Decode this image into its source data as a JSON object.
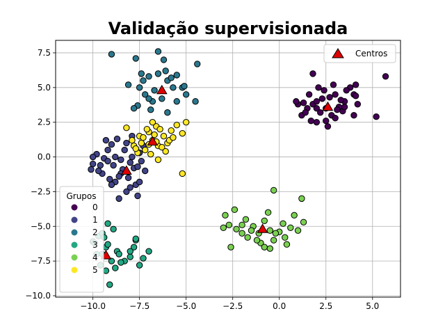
{
  "chart_data": {
    "type": "scatter",
    "title": "Validação supervisionada",
    "xlabel": "",
    "ylabel": "",
    "xlim": [
      -12.0,
      6.5
    ],
    "ylim": [
      -10.1,
      8.4
    ],
    "xticks": [
      -10.0,
      -7.5,
      -5.0,
      -2.5,
      0.0,
      2.5,
      5.0
    ],
    "yticks": [
      -10.0,
      -7.5,
      -5.0,
      -2.5,
      0.0,
      2.5,
      5.0,
      7.5
    ],
    "xtick_labels": [
      "−10.0",
      "−7.5",
      "−5.0",
      "−2.5",
      "0.0",
      "2.5",
      "5.0"
    ],
    "ytick_labels": [
      "−10.0",
      "−7.5",
      "−5.0",
      "−2.5",
      "0.0",
      "2.5",
      "5.0",
      "7.5"
    ],
    "grid": true,
    "legend_groups": {
      "title": "Grupos",
      "placement": "lower-left",
      "entries": [
        {
          "label": "0",
          "color": "#440154"
        },
        {
          "label": "1",
          "color": "#414487"
        },
        {
          "label": "2",
          "color": "#2a788e"
        },
        {
          "label": "3",
          "color": "#22a884"
        },
        {
          "label": "4",
          "color": "#7ad151"
        },
        {
          "label": "5",
          "color": "#fde725"
        }
      ]
    },
    "legend_centers": {
      "label": "Centros",
      "placement": "upper-right",
      "color": "#e00000"
    },
    "series": [
      {
        "name": "0",
        "color": "#440154",
        "points": [
          [
            1.8,
            3.8
          ],
          [
            2.0,
            4.0
          ],
          [
            2.5,
            3.5
          ],
          [
            2.2,
            3.2
          ],
          [
            3.0,
            4.5
          ],
          [
            3.5,
            4.0
          ],
          [
            2.8,
            3.0
          ],
          [
            1.5,
            3.5
          ],
          [
            4.0,
            4.5
          ],
          [
            4.2,
            3.8
          ],
          [
            3.2,
            3.6
          ],
          [
            2.4,
            4.8
          ],
          [
            1.0,
            3.8
          ],
          [
            3.8,
            5.0
          ],
          [
            5.7,
            5.8
          ],
          [
            5.2,
            2.9
          ],
          [
            1.2,
            3.0
          ],
          [
            2.0,
            2.5
          ],
          [
            2.6,
            2.2
          ],
          [
            3.4,
            3.3
          ],
          [
            2.1,
            5.0
          ],
          [
            3.0,
            2.8
          ],
          [
            1.6,
            4.5
          ],
          [
            4.0,
            3.0
          ],
          [
            2.9,
            5.2
          ],
          [
            3.6,
            4.8
          ],
          [
            1.4,
            3.2
          ],
          [
            2.3,
            4.2
          ],
          [
            1.8,
            6.0
          ],
          [
            4.1,
            5.2
          ],
          [
            2.7,
            4.3
          ],
          [
            1.3,
            3.9
          ],
          [
            3.1,
            3.4
          ],
          [
            2.5,
            2.6
          ],
          [
            3.3,
            4.1
          ],
          [
            0.9,
            4.0
          ],
          [
            2.0,
            3.5
          ],
          [
            3.5,
            3.6
          ],
          [
            1.7,
            2.6
          ],
          [
            4.1,
            4.4
          ]
        ]
      },
      {
        "name": "1",
        "color": "#414487",
        "points": [
          [
            -10.0,
            -0.5
          ],
          [
            -9.5,
            -1.2
          ],
          [
            -9.2,
            0.5
          ],
          [
            -8.8,
            -1.8
          ],
          [
            -8.5,
            -0.2
          ],
          [
            -8.2,
            1.0
          ],
          [
            -7.8,
            -0.8
          ],
          [
            -7.5,
            0.3
          ],
          [
            -7.2,
            -1.0
          ],
          [
            -9.8,
            0.2
          ],
          [
            -8.0,
            -2.2
          ],
          [
            -7.6,
            -2.8
          ],
          [
            -8.6,
            -3.0
          ],
          [
            -9.0,
            -2.0
          ],
          [
            -8.3,
            0.5
          ],
          [
            -7.9,
            1.5
          ],
          [
            -8.9,
            -0.6
          ],
          [
            -9.4,
            -0.1
          ],
          [
            -8.7,
            1.3
          ],
          [
            -7.4,
            -0.3
          ],
          [
            -10.1,
            -0.9
          ],
          [
            -9.6,
            -0.6
          ],
          [
            -8.1,
            -1.5
          ],
          [
            -8.4,
            -0.9
          ],
          [
            -7.7,
            -2.0
          ],
          [
            -8.8,
            0.0
          ],
          [
            -9.1,
            -1.6
          ],
          [
            -9.3,
            1.2
          ],
          [
            -10.0,
            0.0
          ],
          [
            -8.5,
            -1.2
          ],
          [
            -7.3,
            0.8
          ],
          [
            -8.0,
            -0.4
          ],
          [
            -9.7,
            -1.0
          ],
          [
            -7.5,
            -1.8
          ],
          [
            -8.2,
            -2.5
          ],
          [
            -9.0,
            0.9
          ],
          [
            -7.6,
            -0.7
          ],
          [
            -8.6,
            -1.4
          ],
          [
            -7.9,
            0.0
          ],
          [
            -9.2,
            -0.3
          ]
        ]
      },
      {
        "name": "2",
        "color": "#2a788e",
        "points": [
          [
            -9.0,
            7.4
          ],
          [
            -7.7,
            7.1
          ],
          [
            -6.5,
            7.6
          ],
          [
            -6.2,
            7.0
          ],
          [
            -5.5,
            5.9
          ],
          [
            -4.4,
            6.7
          ],
          [
            -4.5,
            4.0
          ],
          [
            -5.0,
            4.5
          ],
          [
            -5.7,
            5.0
          ],
          [
            -6.0,
            5.5
          ],
          [
            -6.3,
            4.2
          ],
          [
            -6.8,
            4.0
          ],
          [
            -7.2,
            4.5
          ],
          [
            -7.5,
            5.0
          ],
          [
            -7.0,
            5.8
          ],
          [
            -8.1,
            5.2
          ],
          [
            -7.6,
            3.7
          ],
          [
            -6.0,
            3.2
          ],
          [
            -7.3,
            5.5
          ],
          [
            -6.5,
            6.0
          ],
          [
            -5.2,
            5.0
          ],
          [
            -6.9,
            3.4
          ],
          [
            -7.8,
            3.5
          ],
          [
            -6.1,
            6.2
          ],
          [
            -7.4,
            6.0
          ],
          [
            -5.8,
            5.7
          ],
          [
            -6.7,
            4.8
          ],
          [
            -5.5,
            4.0
          ],
          [
            -7.0,
            4.2
          ],
          [
            -5.1,
            5.1
          ]
        ]
      },
      {
        "name": "3",
        "color": "#22a884",
        "points": [
          [
            -10.0,
            -6.1
          ],
          [
            -9.7,
            -5.7
          ],
          [
            -9.5,
            -7.0
          ],
          [
            -9.2,
            -4.8
          ],
          [
            -8.9,
            -5.2
          ],
          [
            -9.3,
            -6.5
          ],
          [
            -9.0,
            -7.5
          ],
          [
            -8.7,
            -6.8
          ],
          [
            -8.3,
            -7.5
          ],
          [
            -8.0,
            -7.2
          ],
          [
            -7.7,
            -6.0
          ],
          [
            -7.3,
            -7.3
          ],
          [
            -7.0,
            -6.8
          ],
          [
            -9.9,
            -6.2
          ],
          [
            -9.5,
            -5.5
          ],
          [
            -9.1,
            -9.2
          ],
          [
            -9.6,
            -7.8
          ],
          [
            -8.8,
            -8.0
          ],
          [
            -8.5,
            -7.6
          ],
          [
            -7.8,
            -6.5
          ],
          [
            -7.5,
            -7.8
          ],
          [
            -9.4,
            -5.8
          ],
          [
            -9.2,
            -6.3
          ],
          [
            -8.0,
            -6.8
          ],
          [
            -7.7,
            -5.9
          ],
          [
            -9.8,
            -7.0
          ],
          [
            -9.3,
            -8.2
          ],
          [
            -8.6,
            -7.0
          ]
        ]
      },
      {
        "name": "4",
        "color": "#7ad151",
        "points": [
          [
            -3.0,
            -5.1
          ],
          [
            -2.6,
            -6.5
          ],
          [
            -2.3,
            -5.2
          ],
          [
            -2.0,
            -4.9
          ],
          [
            -1.7,
            -5.8
          ],
          [
            -1.4,
            -5.0
          ],
          [
            -1.1,
            -5.5
          ],
          [
            -0.8,
            -4.6
          ],
          [
            -0.5,
            -5.3
          ],
          [
            -0.3,
            -6.0
          ],
          [
            0.0,
            -5.4
          ],
          [
            0.3,
            -5.8
          ],
          [
            0.6,
            -5.1
          ],
          [
            1.0,
            -5.3
          ],
          [
            1.2,
            -3.0
          ],
          [
            1.3,
            -4.7
          ],
          [
            -0.3,
            -2.4
          ],
          [
            -0.6,
            -4.0
          ],
          [
            -1.8,
            -4.5
          ],
          [
            -2.4,
            -3.8
          ],
          [
            -2.9,
            -4.2
          ],
          [
            -1.0,
            -6.2
          ],
          [
            -0.8,
            -6.5
          ],
          [
            -0.5,
            -6.6
          ],
          [
            0.4,
            -6.3
          ],
          [
            -1.5,
            -5.3
          ],
          [
            -0.2,
            -5.5
          ],
          [
            0.2,
            -4.8
          ],
          [
            -2.0,
            -5.5
          ],
          [
            0.8,
            -4.2
          ],
          [
            -1.2,
            -6.0
          ],
          [
            -2.7,
            -4.9
          ]
        ]
      },
      {
        "name": "5",
        "color": "#fde725",
        "points": [
          [
            -8.2,
            2.1
          ],
          [
            -7.5,
            1.5
          ],
          [
            -7.0,
            1.8
          ],
          [
            -6.8,
            1.2
          ],
          [
            -6.5,
            0.8
          ],
          [
            -6.2,
            1.5
          ],
          [
            -5.8,
            1.9
          ],
          [
            -5.5,
            2.3
          ],
          [
            -7.2,
            0.5
          ],
          [
            -6.9,
            0.2
          ],
          [
            -6.6,
            2.2
          ],
          [
            -7.8,
            0.8
          ],
          [
            -6.0,
            1.0
          ],
          [
            -6.3,
            0.7
          ],
          [
            -7.4,
            1.0
          ],
          [
            -6.7,
            1.6
          ],
          [
            -5.2,
            1.7
          ],
          [
            -5.0,
            2.5
          ],
          [
            -5.2,
            -1.2
          ],
          [
            -6.5,
            -0.2
          ],
          [
            -7.6,
            0.3
          ],
          [
            -7.1,
            2.0
          ],
          [
            -5.9,
            1.2
          ],
          [
            -6.4,
            2.0
          ],
          [
            -7.9,
            1.2
          ],
          [
            -6.1,
            0.4
          ],
          [
            -6.8,
            2.5
          ],
          [
            -7.3,
            1.4
          ],
          [
            -5.7,
            1.4
          ],
          [
            -6.6,
            1.1
          ],
          [
            -7.7,
            0.6
          ],
          [
            -7.0,
            0.9
          ]
        ]
      }
    ],
    "centers": [
      {
        "x": 2.6,
        "y": 3.6
      },
      {
        "x": -8.2,
        "y": -1.0
      },
      {
        "x": -6.3,
        "y": 4.8
      },
      {
        "x": -9.3,
        "y": -7.1
      },
      {
        "x": -0.9,
        "y": -5.2
      },
      {
        "x": -6.8,
        "y": 1.1
      }
    ]
  }
}
